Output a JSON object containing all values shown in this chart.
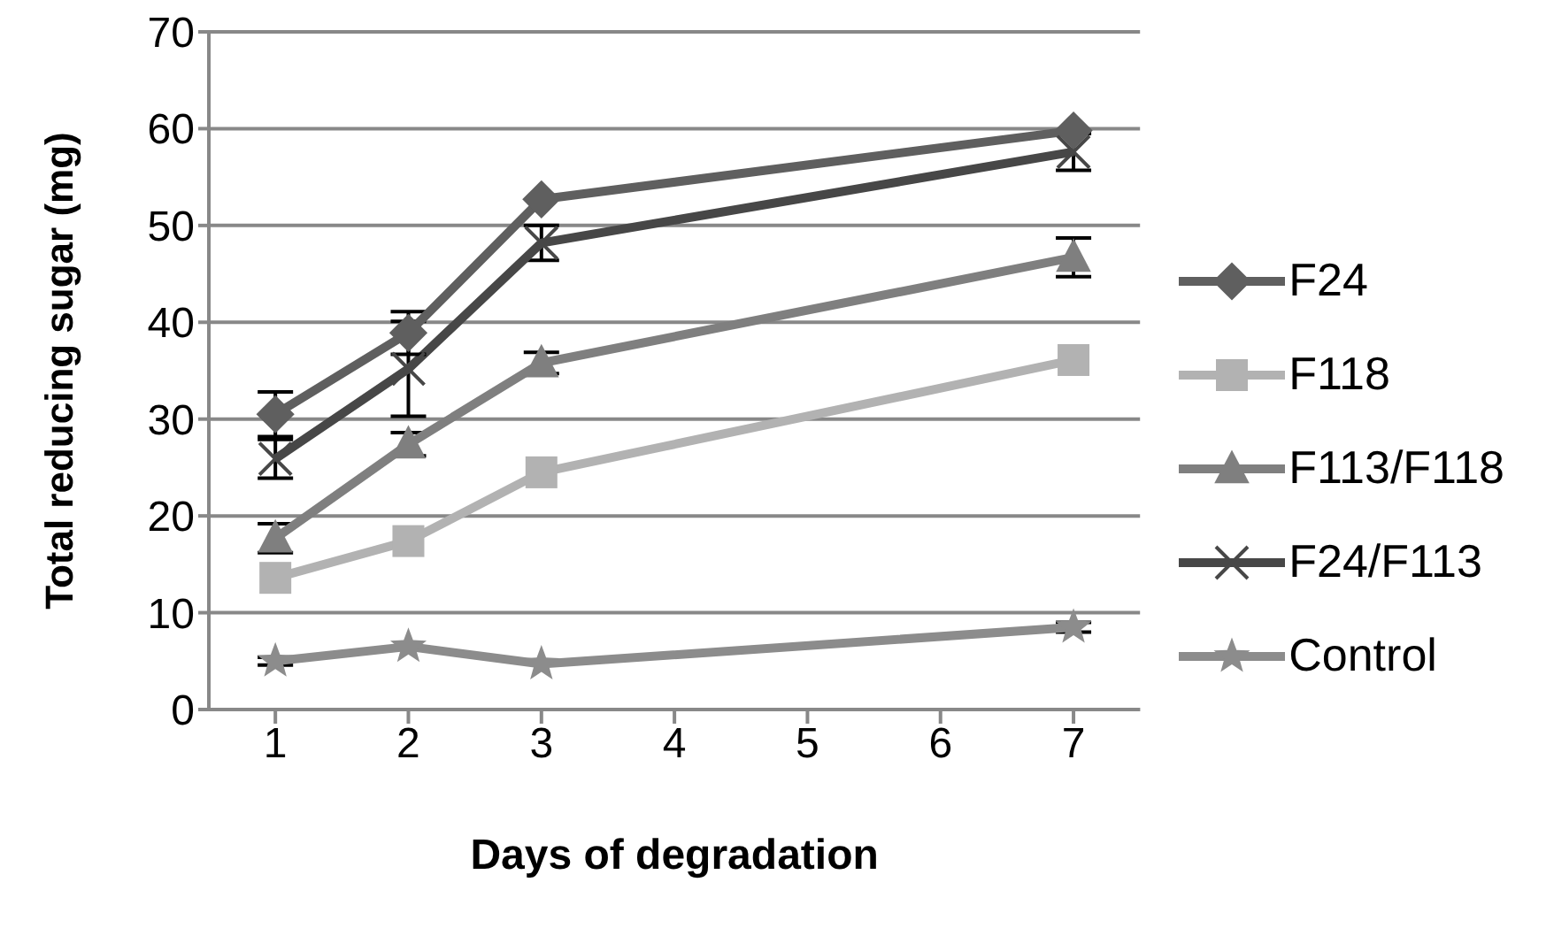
{
  "chart_data": {
    "type": "line",
    "xlabel": "Days of degradation",
    "ylabel": "Total reducing sugar (mg)",
    "x": [
      1,
      2,
      3,
      7
    ],
    "xlim": [
      0.5,
      7.5
    ],
    "xticks": [
      1,
      2,
      3,
      4,
      5,
      6,
      7
    ],
    "ylim": [
      0,
      70
    ],
    "yticks": [
      0,
      10,
      20,
      30,
      40,
      50,
      60,
      70
    ],
    "grid": "y",
    "legend": "right",
    "series": [
      {
        "name": "F24",
        "color": "#5f5f5f",
        "marker": "diamond",
        "values": [
          30.5,
          38.9,
          52.7,
          59.8
        ],
        "errors": [
          2.3,
          2.2,
          null,
          null
        ]
      },
      {
        "name": "F118",
        "color": "#b2b2b2",
        "marker": "square",
        "values": [
          13.6,
          17.4,
          24.5,
          36.1
        ]
      },
      {
        "name": "F113/F118",
        "color": "#7f7f7f",
        "marker": "triangle",
        "values": [
          17.7,
          27.4,
          35.8,
          46.7
        ],
        "errors": [
          1.5,
          1.2,
          1.1,
          2
        ]
      },
      {
        "name": "F24/F113",
        "color": "#474747",
        "marker": "cross",
        "values": [
          25.9,
          35.2,
          48.2,
          57.6
        ],
        "errors": [
          2,
          4.9,
          1.8,
          1.9
        ]
      },
      {
        "name": "Control",
        "color": "#8c8c8c",
        "marker": "star",
        "values": [
          5,
          6.5,
          4.7,
          8.5
        ],
        "errors": [
          0.4,
          null,
          null,
          0.5
        ]
      }
    ]
  }
}
